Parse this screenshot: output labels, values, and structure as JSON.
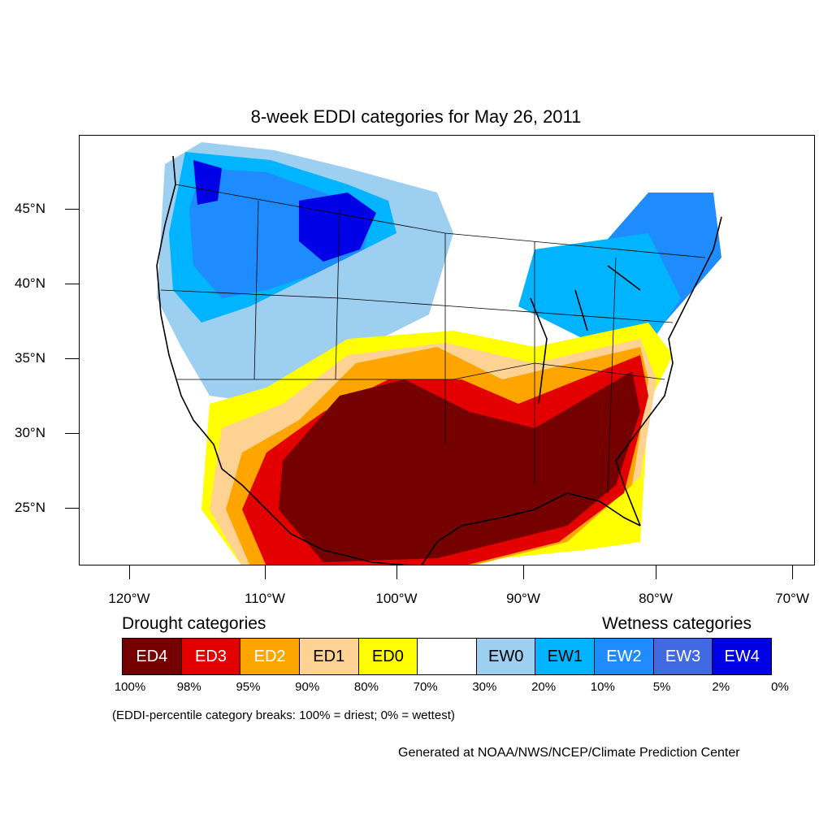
{
  "title": "8-week EDDI categories for May 26, 2011",
  "lat_labels": [
    "45°N",
    "40°N",
    "35°N",
    "30°N",
    "25°N"
  ],
  "lon_labels": [
    "120°W",
    "110°W",
    "100°W",
    "90°W",
    "80°W",
    "70°W"
  ],
  "legend": {
    "drought_heading": "Drought categories",
    "wetness_heading": "Wetness categories",
    "categories": [
      {
        "label": "ED4",
        "color": "#750000",
        "text_color": "#ffffff"
      },
      {
        "label": "ED3",
        "color": "#e30000",
        "text_color": "#ffffff"
      },
      {
        "label": "ED2",
        "color": "#ffa500",
        "text_color": "#ffffff"
      },
      {
        "label": "ED1",
        "color": "#fdd293",
        "text_color": "#000000"
      },
      {
        "label": "ED0",
        "color": "#ffff00",
        "text_color": "#000000"
      },
      {
        "label": "",
        "color": "#ffffff",
        "text_color": "#000000"
      },
      {
        "label": "EW0",
        "color": "#9ccff0",
        "text_color": "#000000"
      },
      {
        "label": "EW1",
        "color": "#00b4ff",
        "text_color": "#000000"
      },
      {
        "label": "EW2",
        "color": "#1e8cff",
        "text_color": "#ffffff"
      },
      {
        "label": "EW3",
        "color": "#4169e1",
        "text_color": "#ffffff"
      },
      {
        "label": "EW4",
        "color": "#0000e6",
        "text_color": "#ffffff"
      }
    ],
    "breaks": [
      "100%",
      "98%",
      "95%",
      "90%",
      "80%",
      "70%",
      "30%",
      "20%",
      "10%",
      "5%",
      "2%",
      "0%"
    ]
  },
  "note": "(EDDI-percentile category breaks: 100% = driest; 0% = wettest)",
  "credit": "Generated at NOAA/NWS/NCEP/Climate Prediction Center"
}
